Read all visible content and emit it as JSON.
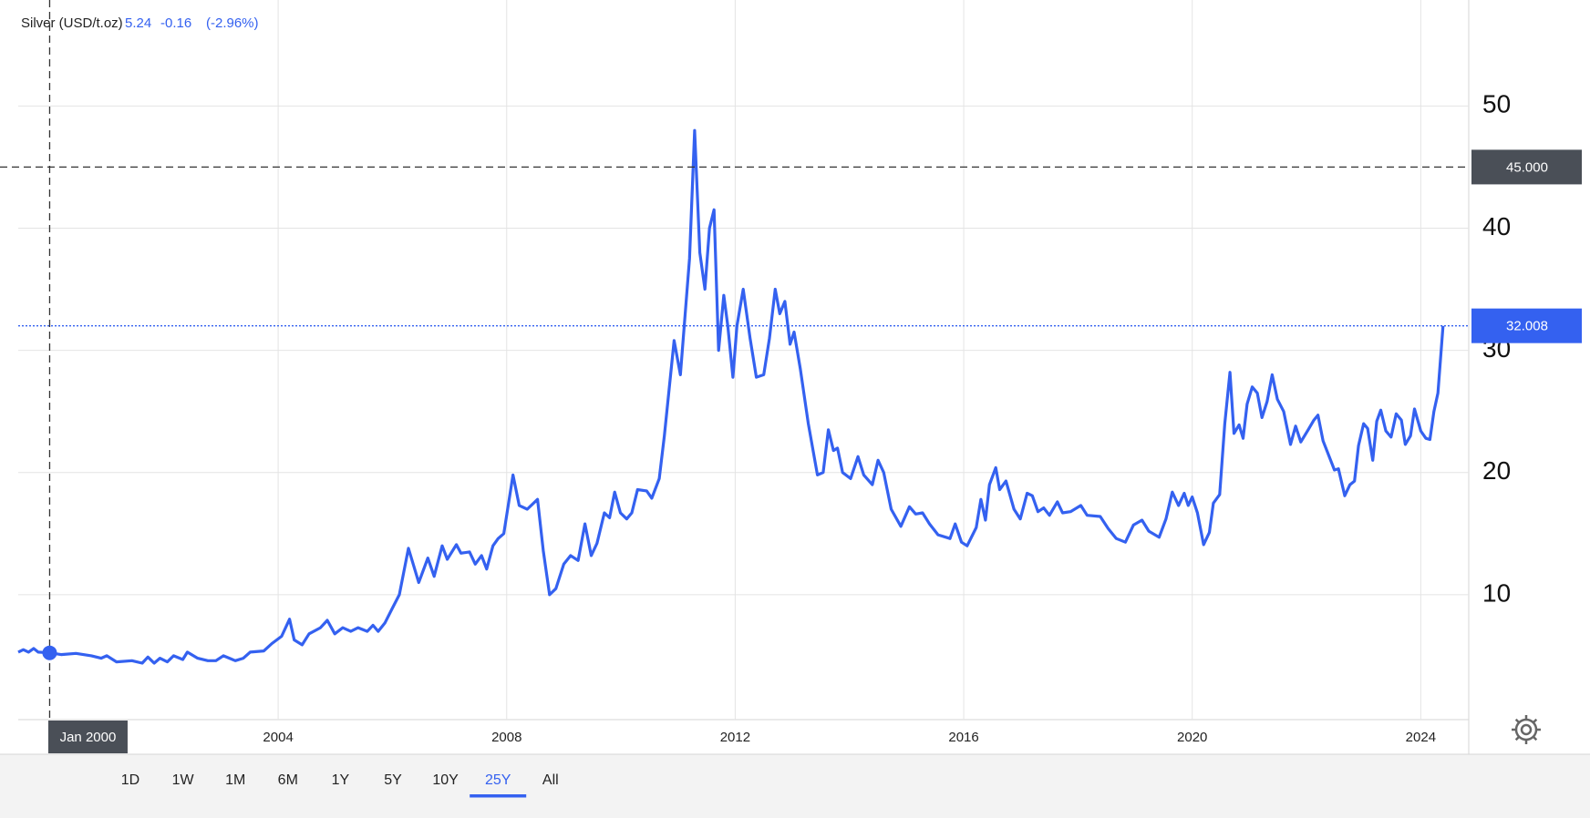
{
  "chart_data": {
    "type": "line",
    "change": -0.16,
    "change_percent": {
      "value": -2.96,
      "label": "(-2.96%)"
    },
    "x": [
      1999.45,
      1999.54,
      1999.63,
      1999.72,
      1999.8,
      2000.0,
      2000.2,
      2000.46,
      2000.73,
      2000.9,
      2001.0,
      2001.17,
      2001.44,
      2001.62,
      2001.72,
      2001.83,
      2001.93,
      2002.06,
      2002.17,
      2002.33,
      2002.41,
      2002.59,
      2002.77,
      2002.91,
      2003.04,
      2003.25,
      2003.39,
      2003.51,
      2003.75,
      2003.89,
      2004.06,
      2004.2,
      2004.28,
      2004.42,
      2004.54,
      2004.74,
      2004.86,
      2004.99,
      2005.13,
      2005.27,
      2005.4,
      2005.56,
      2005.66,
      2005.75,
      2005.87,
      2006.0,
      2006.12,
      2006.28,
      2006.46,
      2006.62,
      2006.73,
      2006.87,
      2006.96,
      2007.12,
      2007.2,
      2007.35,
      2007.45,
      2007.56,
      2007.65,
      2007.76,
      2007.85,
      2007.95,
      2008.11,
      2008.22,
      2008.36,
      2008.54,
      2008.64,
      2008.75,
      2008.86,
      2009.0,
      2009.12,
      2009.25,
      2009.37,
      2009.48,
      2009.58,
      2009.71,
      2009.8,
      2009.89,
      2009.99,
      2010.1,
      2010.19,
      2010.29,
      2010.45,
      2010.54,
      2010.67,
      2010.76,
      2010.93,
      2011.04,
      2011.2,
      2011.29,
      2011.38,
      2011.47,
      2011.55,
      2011.63,
      2011.71,
      2011.8,
      2011.87,
      2011.96,
      2012.03,
      2012.14,
      2012.26,
      2012.37,
      2012.5,
      2012.6,
      2012.7,
      2012.78,
      2012.87,
      2012.96,
      2013.03,
      2013.14,
      2013.28,
      2013.44,
      2013.54,
      2013.63,
      2013.72,
      2013.79,
      2013.88,
      2014.02,
      2014.15,
      2014.25,
      2014.4,
      2014.5,
      2014.6,
      2014.73,
      2014.9,
      2015.05,
      2015.16,
      2015.28,
      2015.4,
      2015.55,
      2015.76,
      2015.85,
      2015.96,
      2016.06,
      2016.22,
      2016.3,
      2016.38,
      2016.45,
      2016.56,
      2016.63,
      2016.74,
      2016.88,
      2016.99,
      2017.11,
      2017.2,
      2017.3,
      2017.4,
      2017.5,
      2017.64,
      2017.73,
      2017.87,
      2018.05,
      2018.16,
      2018.39,
      2018.53,
      2018.67,
      2018.83,
      2018.97,
      2019.12,
      2019.24,
      2019.42,
      2019.54,
      2019.65,
      2019.76,
      2019.86,
      2019.93,
      2020.0,
      2020.09,
      2020.2,
      2020.3,
      2020.37,
      2020.48,
      2020.57,
      2020.66,
      2020.73,
      2020.82,
      2020.89,
      2020.96,
      2021.05,
      2021.14,
      2021.22,
      2021.31,
      2021.4,
      2021.49,
      2021.6,
      2021.72,
      2021.81,
      2021.9,
      2022.03,
      2022.13,
      2022.2,
      2022.29,
      2022.49,
      2022.56,
      2022.67,
      2022.76,
      2022.84,
      2022.91,
      2023.0,
      2023.07,
      2023.16,
      2023.23,
      2023.3,
      2023.39,
      2023.48,
      2023.57,
      2023.66,
      2023.73,
      2023.82,
      2023.89,
      2024.0,
      2024.09,
      2024.16,
      2024.23,
      2024.3,
      2024.39
    ],
    "series": [
      {
        "name": "Silver (USD/t.oz)",
        "color": "#3461f0",
        "values": [
          5.3,
          5.5,
          5.3,
          5.6,
          5.3,
          5.24,
          5.1,
          5.2,
          5.0,
          4.8,
          5.0,
          4.5,
          4.6,
          4.4,
          4.9,
          4.4,
          4.8,
          4.5,
          5.0,
          4.7,
          5.3,
          4.8,
          4.6,
          4.6,
          5.0,
          4.6,
          4.8,
          5.3,
          5.4,
          6.0,
          6.6,
          8.0,
          6.3,
          5.9,
          6.8,
          7.3,
          7.9,
          6.8,
          7.3,
          7.0,
          7.3,
          7.0,
          7.5,
          7.0,
          7.7,
          8.9,
          10.0,
          13.8,
          11.0,
          13.0,
          11.5,
          14.0,
          12.9,
          14.1,
          13.4,
          13.5,
          12.5,
          13.2,
          12.1,
          14.0,
          14.6,
          15.0,
          19.8,
          17.3,
          17.0,
          17.8,
          13.6,
          10.0,
          10.5,
          12.5,
          13.2,
          12.8,
          15.8,
          13.2,
          14.2,
          16.7,
          16.3,
          18.4,
          16.7,
          16.2,
          16.7,
          18.6,
          18.5,
          17.9,
          19.5,
          23,
          30.8,
          28,
          37.5,
          48,
          38,
          35,
          40,
          41.5,
          30,
          34.5,
          32,
          27.8,
          32,
          35,
          31,
          27.8,
          28,
          31,
          35,
          33,
          34,
          30.5,
          31.5,
          28.5,
          24,
          19.8,
          20,
          23.5,
          21.8,
          22,
          20,
          19.5,
          21.3,
          19.8,
          19,
          21,
          20,
          17,
          15.6,
          17.2,
          16.6,
          16.7,
          15.8,
          14.9,
          14.6,
          15.8,
          14.3,
          14.0,
          15.5,
          17.8,
          16.1,
          19,
          20.4,
          18.6,
          19.3,
          17,
          16.2,
          18.3,
          18.1,
          16.8,
          17.1,
          16.5,
          17.6,
          16.7,
          16.8,
          17.3,
          16.5,
          16.4,
          15.4,
          14.6,
          14.3,
          15.7,
          16.1,
          15.2,
          14.7,
          16.2,
          18.4,
          17.3,
          18.3,
          17.3,
          18,
          16.7,
          14.1,
          15.1,
          17.5,
          18.2,
          24,
          28.2,
          23.2,
          23.9,
          22.8,
          25.6,
          27.0,
          26.5,
          24.5,
          25.8,
          28,
          26,
          25,
          22.3,
          23.8,
          22.5,
          23.5,
          24.3,
          24.7,
          22.6,
          20.2,
          20.3,
          18.1,
          19,
          19.3,
          22.2,
          24,
          23.6,
          21,
          24.2,
          25.1,
          23.4,
          22.9,
          24.8,
          24.3,
          22.3,
          23,
          25.2,
          23.4,
          22.8,
          22.7,
          25,
          26.5,
          32
        ]
      }
    ],
    "xlim": [
      1999.45,
      2024.84
    ],
    "xticks": [
      2004,
      2008,
      2012,
      2016,
      2020,
      2024
    ],
    "ylim": [
      0,
      58.3
    ],
    "yticks": [
      10,
      20,
      30,
      40,
      50
    ],
    "grid": true,
    "hover_index": 5,
    "crosshair": {
      "x_label": "Jan 2000",
      "y": {
        "value": 45,
        "label": "45.000"
      }
    },
    "last_price": 32.008,
    "range_buttons": [
      "1D",
      "1W",
      "1M",
      "6M",
      "1Y",
      "5Y",
      "10Y",
      "25Y",
      "All"
    ],
    "active_range": "25Y"
  }
}
